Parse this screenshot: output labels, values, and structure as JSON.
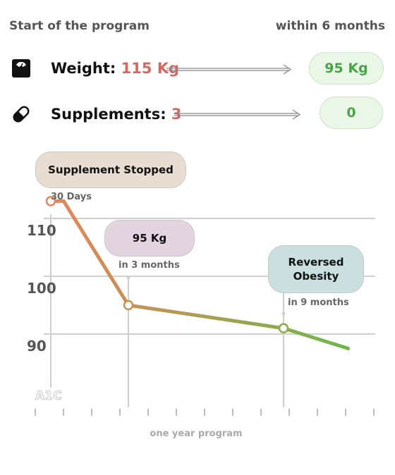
{
  "header": {
    "left": "Start of the program",
    "right": "within 6 months"
  },
  "weight": {
    "label": "Weight:",
    "value": "115 Kg",
    "target": "95 Kg",
    "icon": "scale-icon"
  },
  "supplements": {
    "label": "Supplements:",
    "value": "3",
    "target": "0",
    "icon": "pill-icon"
  },
  "colors": {
    "start": "#e8845a",
    "end": "#6db84a",
    "red": "#d06a63",
    "green": "#4aa34a"
  },
  "annotations": {
    "supplement_stopped": "Supplement Stopped",
    "days30": "30 Days",
    "kg95": "95 Kg",
    "in3months": "in 3 months",
    "reversed": [
      "Reversed",
      "Obesity"
    ],
    "in9months": "in 9 months"
  },
  "chart_data": {
    "type": "line",
    "xlabel": "one year program",
    "ylabel": "A1C",
    "yticks": [
      110,
      100,
      90
    ],
    "ylim": [
      85,
      115
    ],
    "xlim": [
      0,
      12
    ],
    "grid": true,
    "series": [
      {
        "values": [
          {
            "x": 0,
            "y": 113
          },
          {
            "x": 0.5,
            "y": 113
          },
          {
            "x": 3,
            "y": 95
          },
          {
            "x": 6,
            "y": 93
          },
          {
            "x": 9,
            "y": 91
          },
          {
            "x": 11.5,
            "y": 87.5
          }
        ]
      }
    ],
    "markers": [
      {
        "x": 0,
        "y": 113
      },
      {
        "x": 3,
        "y": 95
      },
      {
        "x": 9,
        "y": 91
      }
    ]
  }
}
